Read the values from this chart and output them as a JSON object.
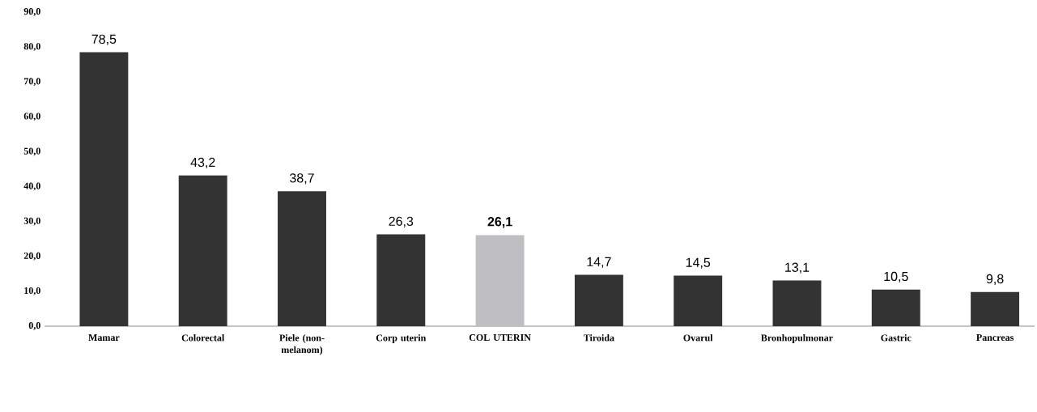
{
  "chart_data": {
    "type": "bar",
    "categories": [
      "Mamar",
      "Colorectal",
      "Piele (non-melanom)",
      "Corp uterin",
      "COL UTERIN",
      "Tiroida",
      "Ovarul",
      "Bronhopulmonar",
      "Gastric",
      "Pancreas"
    ],
    "values": [
      78.5,
      43.2,
      38.7,
      26.3,
      26.1,
      14.7,
      14.5,
      13.1,
      10.5,
      9.8
    ],
    "colors": [
      "#333333",
      "#333333",
      "#333333",
      "#333333",
      "#bfbfc3",
      "#333333",
      "#333333",
      "#333333",
      "#333333",
      "#333333"
    ],
    "value_labels": [
      "78,5",
      "43,2",
      "38,7",
      "26,3",
      "**26,1**",
      "14,7",
      "14,5",
      "13,1",
      "10,5",
      "9,8"
    ],
    "ylim": [
      0,
      90
    ],
    "yticks": [
      {
        "value": 0,
        "label": "0,0"
      },
      {
        "value": 10,
        "label": "10,0"
      },
      {
        "value": 20,
        "label": "20,0"
      },
      {
        "value": 30,
        "label": "30,0"
      },
      {
        "value": 40,
        "label": "40,0"
      },
      {
        "value": 50,
        "label": "50,0"
      },
      {
        "value": 60,
        "label": "60,0"
      },
      {
        "value": 70,
        "label": "70,0"
      },
      {
        "value": 80,
        "label": "80,0"
      },
      {
        "value": 90,
        "label": "90,0"
      }
    ]
  }
}
